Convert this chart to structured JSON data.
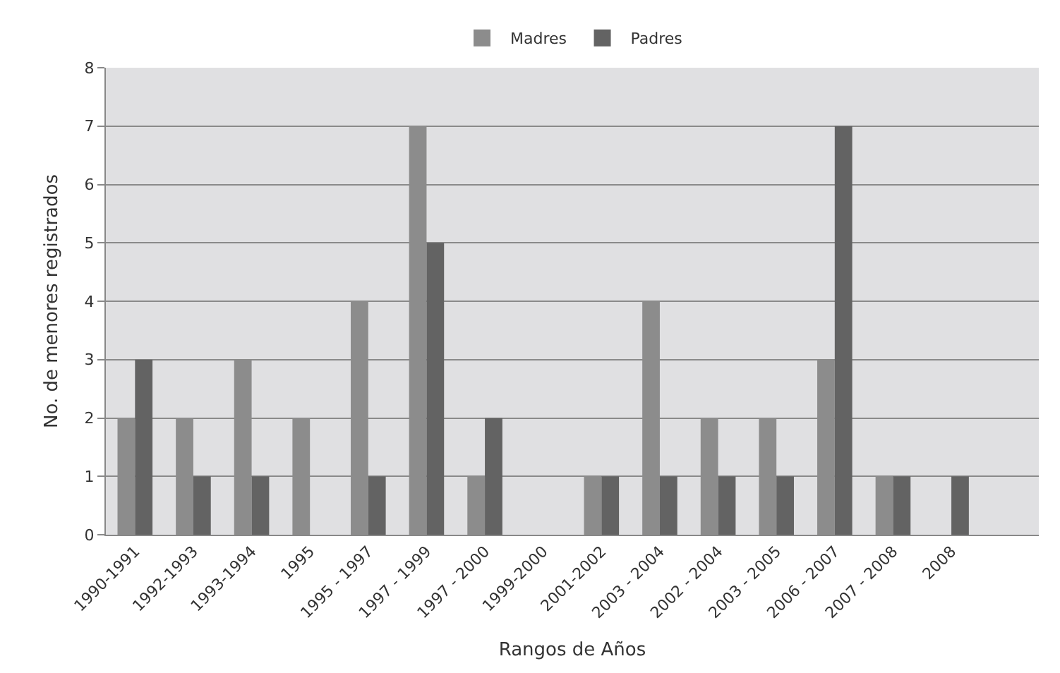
{
  "chart_data": {
    "type": "bar",
    "xlabel": "Rangos de Años",
    "ylabel": "No. de menores registrados",
    "categories": [
      "1990-1991",
      "1992-1993",
      "1993-1994",
      "1995",
      "1995 - 1997",
      "1997 - 1999",
      "1997 - 2000",
      "1999-2000",
      "2001-2002",
      "2003 - 2004",
      "2002 - 2004",
      "2003 - 2005",
      "2006 - 2007",
      "2007 - 2008",
      "2008",
      null
    ],
    "series": [
      {
        "name": "Madres",
        "color": "#8c8c8c",
        "values": [
          2,
          2,
          3,
          2,
          4,
          7,
          1,
          null,
          1,
          4,
          2,
          2,
          3,
          1,
          null,
          null
        ]
      },
      {
        "name": "Padres",
        "color": "#636363",
        "values": [
          3,
          1,
          1,
          null,
          1,
          5,
          2,
          null,
          1,
          1,
          1,
          1,
          7,
          1,
          1,
          null
        ]
      }
    ],
    "ylim": [
      0,
      8
    ],
    "yticks": [
      0,
      1,
      2,
      3,
      4,
      5,
      6,
      7,
      8
    ],
    "grid": "y",
    "legend": "top"
  }
}
